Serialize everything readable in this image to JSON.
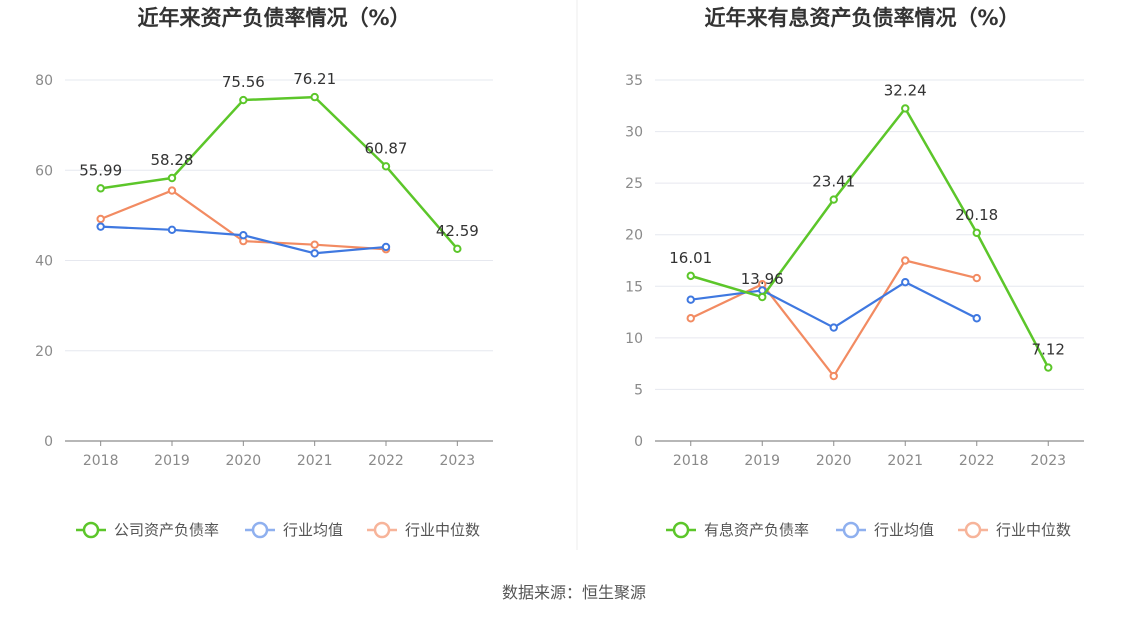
{
  "source": "数据来源：恒生聚源",
  "chart_data": [
    {
      "type": "line",
      "title": "近年来资产负债率情况（%）",
      "x": [
        "2018",
        "2019",
        "2020",
        "2021",
        "2022",
        "2023"
      ],
      "ylim": [
        0,
        80
      ],
      "yticks": [
        0,
        20,
        40,
        60,
        80
      ],
      "grid": true,
      "legend_position": "bottom",
      "series": [
        {
          "name": "公司资产负债率",
          "color": "#5cc62a",
          "values": [
            55.99,
            58.28,
            75.56,
            76.21,
            60.87,
            42.59
          ],
          "labels": [
            "55.99",
            "58.28",
            "75.56",
            "76.21",
            "60.87",
            "42.59"
          ]
        },
        {
          "name": "行业均值",
          "color": "#3f78e0",
          "values": [
            47.5,
            46.8,
            45.6,
            41.6,
            43.0,
            null
          ]
        },
        {
          "name": "行业中位数",
          "color": "#f28b62",
          "values": [
            49.2,
            55.5,
            44.3,
            43.5,
            42.5,
            null
          ]
        }
      ]
    },
    {
      "type": "line",
      "title": "近年来有息资产负债率情况（%）",
      "x": [
        "2018",
        "2019",
        "2020",
        "2021",
        "2022",
        "2023"
      ],
      "ylim": [
        0,
        35
      ],
      "yticks": [
        0,
        5,
        10,
        15,
        20,
        25,
        30,
        35
      ],
      "grid": true,
      "legend_position": "bottom",
      "series": [
        {
          "name": "有息资产负债率",
          "color": "#5cc62a",
          "values": [
            16.01,
            13.96,
            23.41,
            32.24,
            20.18,
            7.12
          ],
          "labels": [
            "16.01",
            "13.96",
            "23.41",
            "32.24",
            "20.18",
            "7.12"
          ]
        },
        {
          "name": "行业均值",
          "color": "#3f78e0",
          "values": [
            13.7,
            14.6,
            11.0,
            15.4,
            11.9,
            null
          ]
        },
        {
          "name": "行业中位数",
          "color": "#f28b62",
          "values": [
            11.9,
            15.2,
            6.3,
            17.5,
            15.8,
            null
          ]
        }
      ]
    }
  ]
}
